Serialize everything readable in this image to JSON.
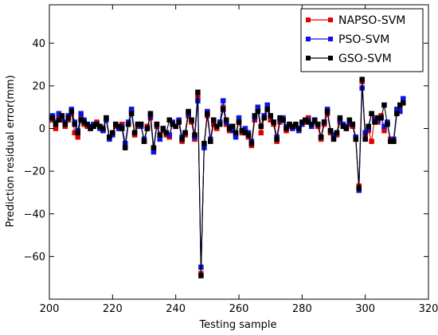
{
  "chart_data": {
    "type": "line",
    "xlabel": "Testing sample",
    "ylabel": "Prediction residual error(mm)",
    "xlim": [
      200,
      320
    ],
    "ylim": [
      -80,
      58
    ],
    "x_ticks": [
      200,
      220,
      240,
      260,
      280,
      300,
      320
    ],
    "y_ticks": [
      -60,
      -40,
      -20,
      0,
      20,
      40
    ],
    "x_tick_labels": [
      "200",
      "220",
      "240",
      "260",
      "280",
      "300",
      "320"
    ],
    "y_tick_labels": [
      "−60",
      "−40",
      "−20",
      "0",
      "20",
      "40"
    ],
    "grid": false,
    "legend_position": "top-right",
    "x_start": 201,
    "series": [
      {
        "name": "NAPSO-SVM",
        "color": "#e00000",
        "values": [
          4,
          0,
          6,
          4,
          1,
          4,
          7,
          -2,
          -4,
          5,
          2,
          1,
          0,
          1,
          3,
          1,
          -1,
          5,
          -4,
          -2,
          1,
          0,
          2,
          -8,
          2,
          8,
          -3,
          1,
          2,
          -6,
          1,
          5,
          -10,
          1,
          -3,
          -1,
          -3,
          -4,
          2,
          1,
          3,
          -6,
          -3,
          6,
          3,
          -5,
          15,
          -68,
          -8,
          6,
          -6,
          2,
          0,
          3,
          10,
          2,
          -1,
          1,
          -3,
          3,
          -2,
          -1,
          -4,
          -8,
          4,
          9,
          -2,
          5,
          9,
          4,
          2,
          -6,
          3,
          4,
          -1,
          1,
          1,
          1,
          0,
          2,
          3,
          5,
          1,
          4,
          1,
          -5,
          2,
          7,
          -2,
          -4,
          -3,
          3,
          1,
          0,
          2,
          1,
          -5,
          -27,
          22,
          -3,
          -1,
          -6,
          5,
          3,
          6,
          -1,
          2,
          -5,
          -6,
          8,
          10,
          12
        ],
        "marker": "square"
      },
      {
        "name": "PSO-SVM",
        "color": "#0a14e6",
        "values": [
          6,
          3,
          7,
          5,
          3,
          6,
          9,
          3,
          -1,
          7,
          4,
          2,
          1,
          2,
          2,
          0,
          -1,
          4,
          -5,
          -3,
          2,
          0,
          1,
          -7,
          3,
          9,
          -2,
          2,
          1,
          -5,
          0,
          6,
          -11,
          2,
          -5,
          0,
          -2,
          -3,
          3,
          1,
          4,
          -4,
          -2,
          7,
          4,
          -4,
          13,
          -65,
          -9,
          8,
          -5,
          4,
          1,
          3,
          13,
          3,
          1,
          -1,
          -4,
          5,
          -1,
          0,
          -2,
          -6,
          5,
          10,
          1,
          6,
          11,
          6,
          3,
          -4,
          4,
          5,
          1,
          2,
          0,
          1,
          -1,
          2,
          4,
          4,
          1,
          3,
          2,
          -4,
          3,
          9,
          -1,
          -3,
          -2,
          4,
          2,
          1,
          3,
          2,
          -4,
          -29,
          19,
          -2,
          0,
          7,
          4,
          4,
          5,
          1,
          3,
          -6,
          -5,
          9,
          8,
          14
        ],
        "marker": "square"
      },
      {
        "name": "GSO-SVM",
        "color": "#000000",
        "values": [
          5,
          2,
          4,
          6,
          2,
          5,
          8,
          2,
          -2,
          4,
          3,
          2,
          0,
          1,
          2,
          1,
          0,
          5,
          -4,
          -2,
          2,
          1,
          0,
          -9,
          2,
          7,
          -2,
          2,
          2,
          -6,
          0,
          7,
          -9,
          2,
          -3,
          0,
          -2,
          4,
          2,
          1,
          3,
          -5,
          -2,
          8,
          4,
          -3,
          17,
          -69,
          -7,
          7,
          -6,
          4,
          1,
          2,
          9,
          4,
          0,
          1,
          -2,
          3,
          -1,
          -2,
          -3,
          -7,
          6,
          8,
          1,
          5,
          9,
          6,
          3,
          -5,
          5,
          4,
          0,
          2,
          1,
          2,
          0,
          3,
          4,
          3,
          2,
          4,
          2,
          -4,
          3,
          8,
          -1,
          -5,
          -2,
          5,
          1,
          0,
          4,
          2,
          -5,
          -28,
          23,
          -5,
          1,
          7,
          3,
          5,
          5,
          11,
          2,
          -6,
          -6,
          7,
          11,
          12
        ],
        "marker": "square"
      }
    ]
  }
}
